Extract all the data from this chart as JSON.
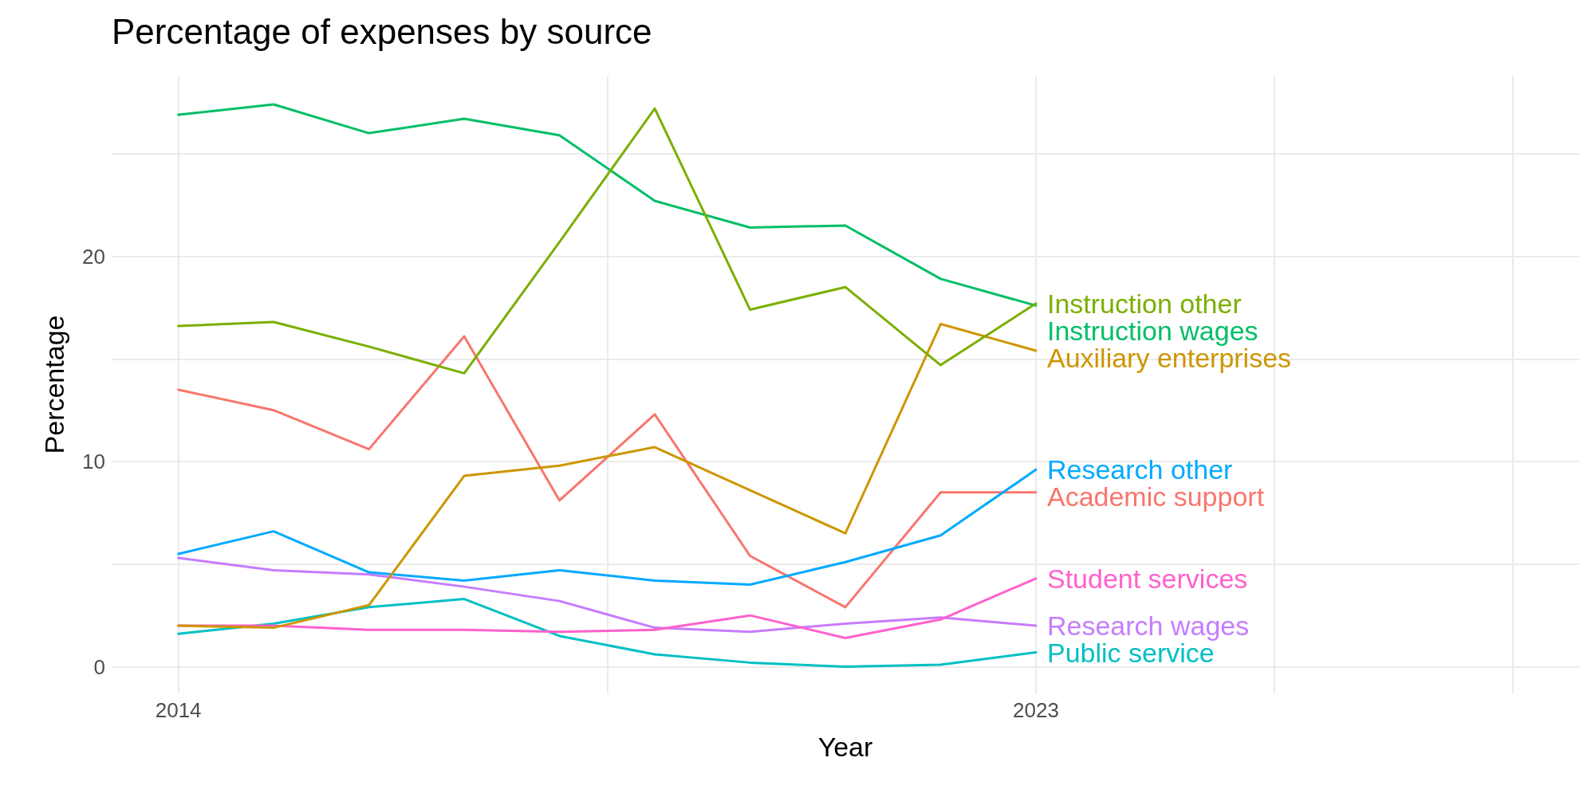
{
  "chart_data": {
    "type": "line",
    "title": "Percentage of expenses by source",
    "xlabel": "Year",
    "ylabel": "Percentage",
    "x": [
      2014,
      2015,
      2016,
      2017,
      2018,
      2019,
      2020,
      2021,
      2022,
      2023
    ],
    "xlim": [
      2013.3,
      2028.7
    ],
    "xticks": [
      2014,
      {
        "value": 2018.5,
        "label": null
      },
      2023,
      {
        "value": 2025.5,
        "label": null
      },
      {
        "value": 2028,
        "label": null
      }
    ],
    "ylim": [
      -1.3,
      28.8
    ],
    "yticks": [
      0,
      {
        "value": 5,
        "label": null
      },
      10,
      {
        "value": 15,
        "label": null
      },
      20,
      {
        "value": 25,
        "label": null
      }
    ],
    "grid": true,
    "legend": false,
    "marker": "none",
    "line_style": "solid",
    "series": [
      {
        "name": "Instruction other",
        "color": "#7cae00",
        "values": [
          16.6,
          16.8,
          15.6,
          14.3,
          20.7,
          27.2,
          17.4,
          18.5,
          14.7,
          17.7
        ]
      },
      {
        "name": "Instruction wages",
        "color": "#00be67",
        "values": [
          26.9,
          27.4,
          26.0,
          26.7,
          25.9,
          22.7,
          21.4,
          21.5,
          18.9,
          17.6
        ]
      },
      {
        "name": "Auxiliary enterprises",
        "color": "#cd9600",
        "values": [
          2.0,
          1.9,
          3.0,
          9.3,
          9.8,
          10.7,
          8.6,
          6.5,
          16.7,
          15.4
        ]
      },
      {
        "name": "Research other",
        "color": "#00a9ff",
        "values": [
          5.5,
          6.6,
          4.6,
          4.2,
          4.7,
          4.2,
          4.0,
          5.1,
          6.4,
          9.6
        ]
      },
      {
        "name": "Academic support",
        "color": "#f8766d",
        "values": [
          13.5,
          12.5,
          10.6,
          16.1,
          8.1,
          12.3,
          5.4,
          2.9,
          8.5,
          8.5
        ]
      },
      {
        "name": "Student services",
        "color": "#ff61cc",
        "values": [
          2.0,
          2.0,
          1.8,
          1.8,
          1.7,
          1.8,
          2.5,
          1.4,
          2.3,
          4.3
        ]
      },
      {
        "name": "Research wages",
        "color": "#c77cff",
        "values": [
          5.3,
          4.7,
          4.5,
          3.9,
          3.2,
          1.9,
          1.7,
          2.1,
          2.4,
          2.0
        ]
      },
      {
        "name": "Public service",
        "color": "#00bfc4",
        "values": [
          1.6,
          2.1,
          2.9,
          3.3,
          1.5,
          0.6,
          0.2,
          0.0,
          0.1,
          0.7
        ]
      }
    ]
  }
}
